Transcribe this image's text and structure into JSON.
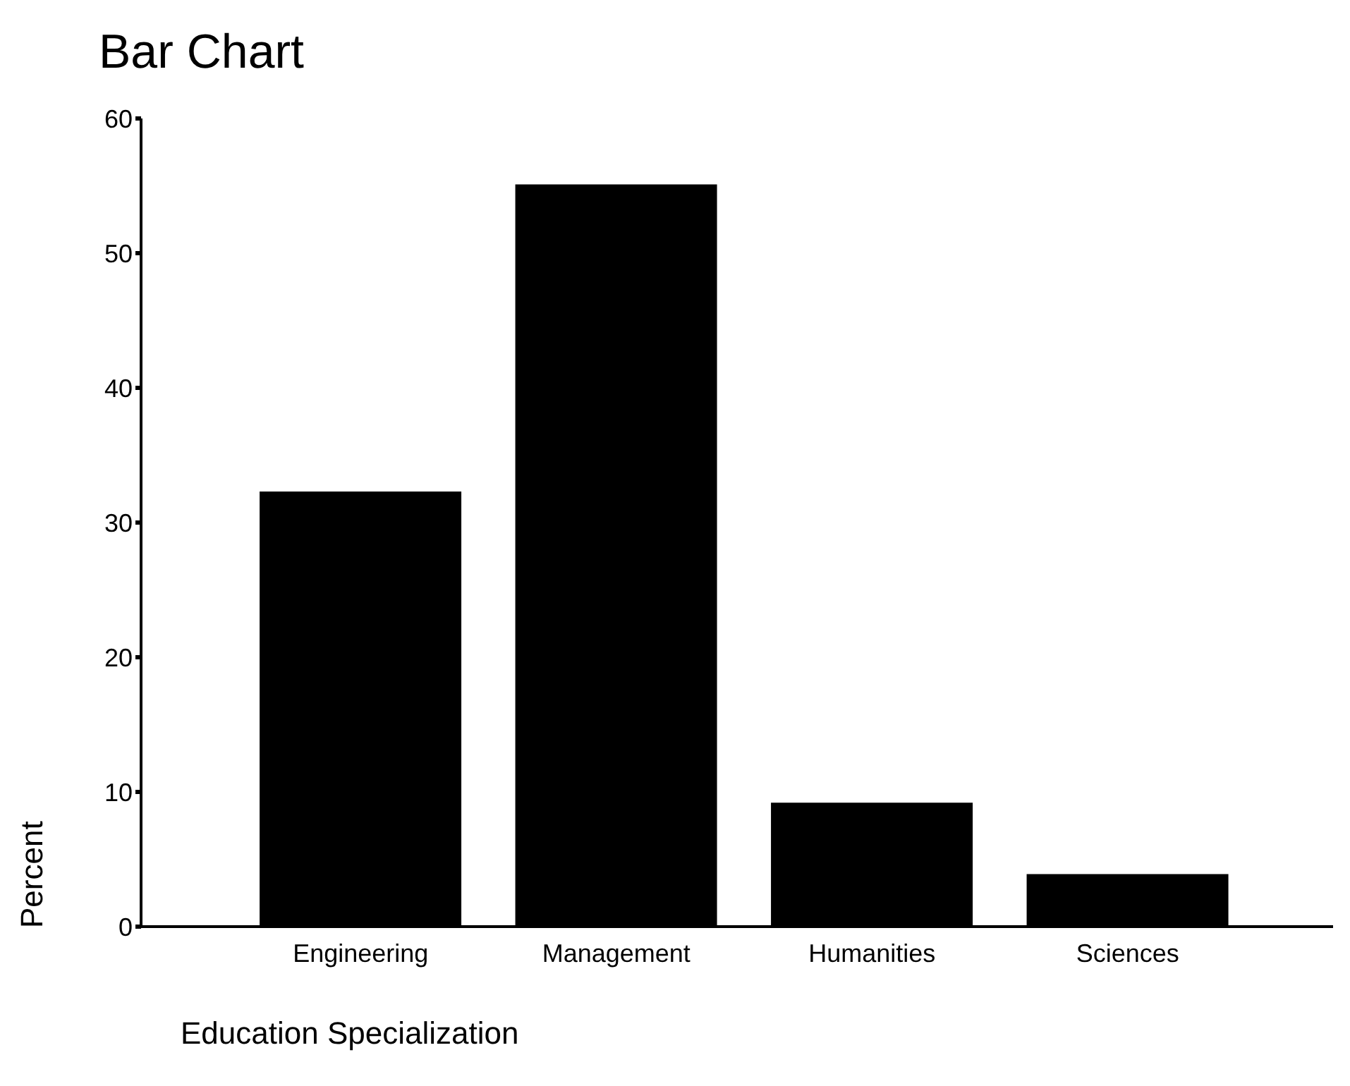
{
  "chart_data": {
    "type": "bar",
    "title": "Bar Chart",
    "xlabel": "Education Specialization",
    "ylabel": "Percent",
    "categories": [
      "Engineering",
      "Management",
      "Humanities",
      "Sciences"
    ],
    "values": [
      32.3,
      55.1,
      9.2,
      3.9
    ],
    "color": "#000000",
    "ylim": [
      0,
      60
    ],
    "yticks": [
      0,
      10,
      20,
      30,
      40,
      50,
      60
    ],
    "grid": false,
    "legend": false
  }
}
